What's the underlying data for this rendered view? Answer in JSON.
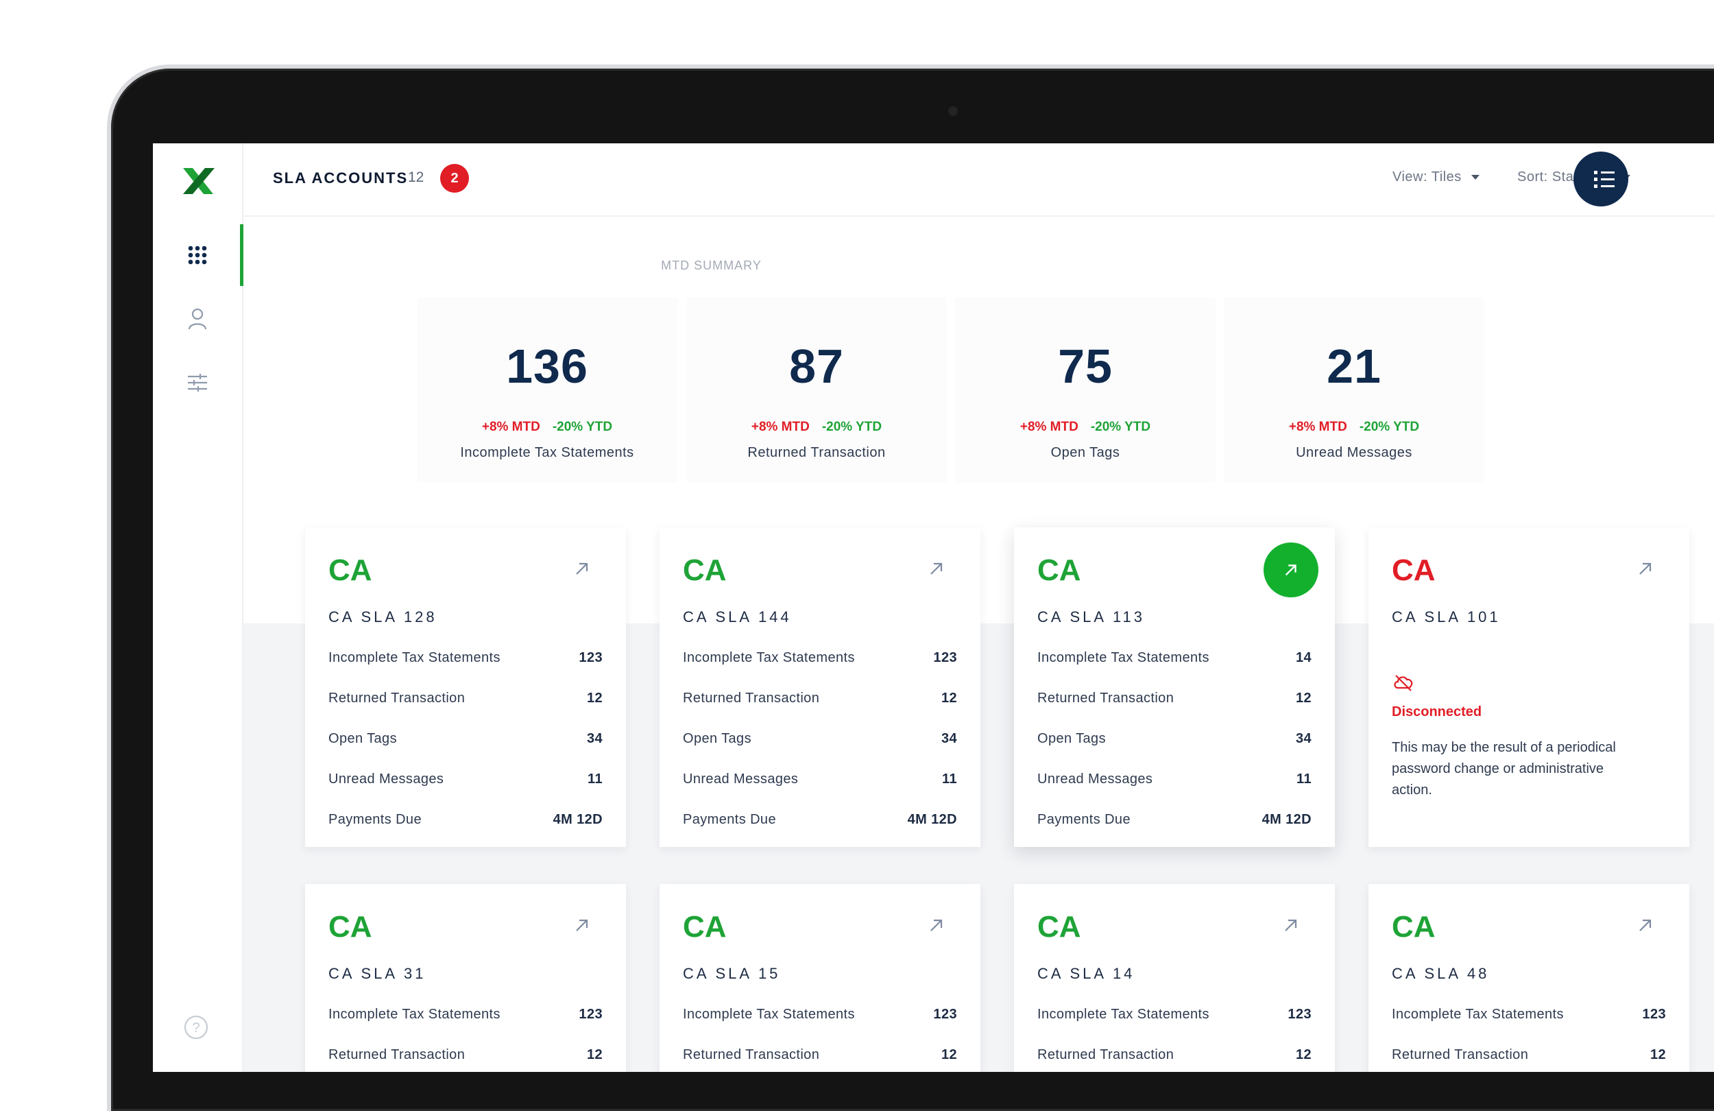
{
  "app": {
    "title": "SLA ACCOUNTS",
    "count": "12",
    "alert_badge": "2"
  },
  "topbar": {
    "view_label": "View: Tiles",
    "sort_label": "Sort: State A-Z"
  },
  "sidebar": {
    "items": [
      {
        "name": "dashboard-grid",
        "active": true
      },
      {
        "name": "user-profile",
        "active": false
      },
      {
        "name": "settings-sliders",
        "active": false
      }
    ]
  },
  "summary": {
    "heading": "MTD SUMMARY",
    "stats": [
      {
        "value": "136",
        "mtd": "+8% MTD",
        "ytd": "-20% YTD",
        "label": "Incomplete Tax Statements"
      },
      {
        "value": "87",
        "mtd": "+8% MTD",
        "ytd": "-20% YTD",
        "label": "Returned Transaction"
      },
      {
        "value": "75",
        "mtd": "+8% MTD",
        "ytd": "-20% YTD",
        "label": "Open Tags"
      },
      {
        "value": "21",
        "mtd": "+8% MTD",
        "ytd": "-20% YTD",
        "label": "Unread Messages"
      }
    ]
  },
  "row_labels": {
    "incomplete": "Incomplete Tax Statements",
    "returned": "Returned Transaction",
    "tags": "Open Tags",
    "unread": "Unread Messages",
    "payments": "Payments Due"
  },
  "cards": [
    {
      "state": "CA",
      "name": "CA SLA 128",
      "incomplete": "123",
      "returned": "12",
      "tags": "34",
      "unread": "11",
      "payments": "4M 12D"
    },
    {
      "state": "CA",
      "name": "CA SLA 144",
      "incomplete": "123",
      "returned": "12",
      "tags": "34",
      "unread": "11",
      "payments": "4M 12D"
    },
    {
      "state": "CA",
      "name": "CA SLA 113",
      "incomplete": "14",
      "returned": "12",
      "tags": "34",
      "unread": "11",
      "payments": "4M 12D",
      "highlighted": true
    },
    {
      "state": "CA",
      "name": "CA SLA 101",
      "status": "Disconnected",
      "message": "This may be the result of a periodical password change or administrative action."
    },
    {
      "state": "CA",
      "name": "CA SLA 31",
      "incomplete": "123",
      "returned": "12"
    },
    {
      "state": "CA",
      "name": "CA SLA 15",
      "incomplete": "123",
      "returned": "12"
    },
    {
      "state": "CA",
      "name": "CA SLA 14",
      "incomplete": "123",
      "returned": "12"
    },
    {
      "state": "CA",
      "name": "CA SLA 48",
      "incomplete": "123",
      "returned": "12"
    }
  ],
  "colors": {
    "green": "#1ea336",
    "red": "#e11d26",
    "navy": "#0f2a4d"
  }
}
